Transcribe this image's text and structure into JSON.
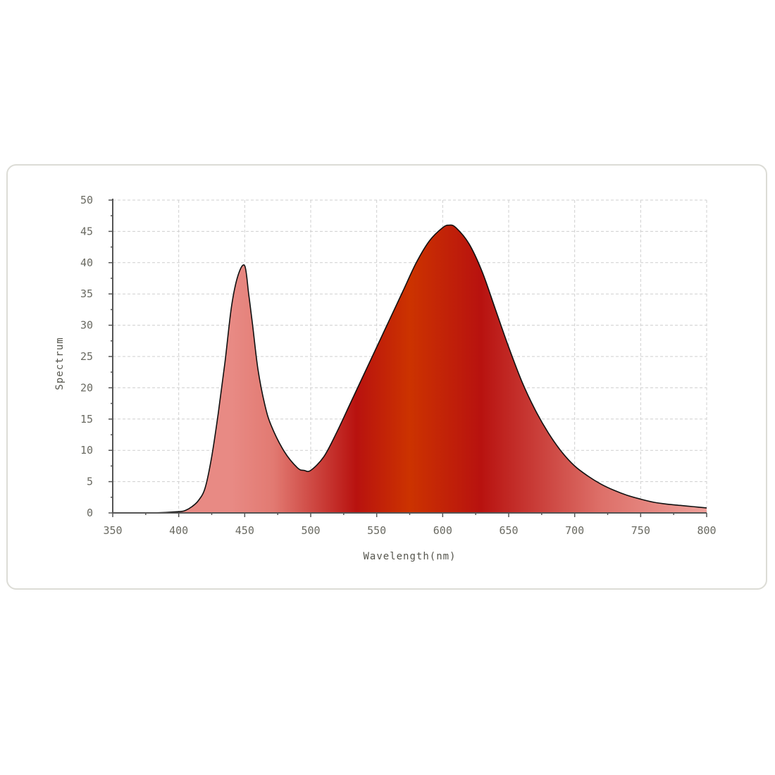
{
  "chart_data": {
    "type": "area",
    "title": "",
    "xlabel": "Wavelength(nm)",
    "ylabel": "Spectrum",
    "xlim": [
      350,
      800
    ],
    "ylim": [
      0,
      50
    ],
    "x_ticks": [
      350,
      400,
      450,
      500,
      550,
      600,
      650,
      700,
      750,
      800
    ],
    "y_ticks": [
      0,
      5,
      10,
      15,
      20,
      25,
      30,
      35,
      40,
      45,
      50
    ],
    "grid": true,
    "legend": "none",
    "colors": {
      "fill_light": "#e88a84",
      "fill_dark": "#b8120f",
      "fill_center": "#cc3300",
      "line": "#111111",
      "grid": "#cfcfcf",
      "axis": "#555555"
    },
    "series": [
      {
        "x": [
          350,
          380,
          400,
          405,
          410,
          415,
          420,
          425,
          430,
          435,
          440,
          445,
          450,
          453,
          456,
          460,
          465,
          470,
          480,
          490,
          495,
          500,
          510,
          520,
          530,
          540,
          550,
          560,
          570,
          580,
          590,
          600,
          605,
          610,
          620,
          630,
          640,
          650,
          660,
          670,
          680,
          690,
          700,
          710,
          720,
          730,
          740,
          750,
          760,
          770,
          780,
          790,
          800
        ],
        "y": [
          0,
          0,
          0.2,
          0.4,
          1,
          2,
          4,
          9,
          16,
          24,
          33,
          38,
          39.5,
          35,
          30,
          23,
          17.5,
          14,
          9.8,
          7.2,
          6.8,
          6.8,
          9,
          13,
          17.5,
          22,
          26.5,
          31,
          35.5,
          40,
          43.5,
          45.6,
          46,
          45.6,
          43,
          38.5,
          32.5,
          26.5,
          21,
          16.5,
          12.8,
          9.8,
          7.5,
          5.9,
          4.6,
          3.6,
          2.8,
          2.2,
          1.7,
          1.4,
          1.2,
          1,
          0.8
        ]
      }
    ]
  }
}
